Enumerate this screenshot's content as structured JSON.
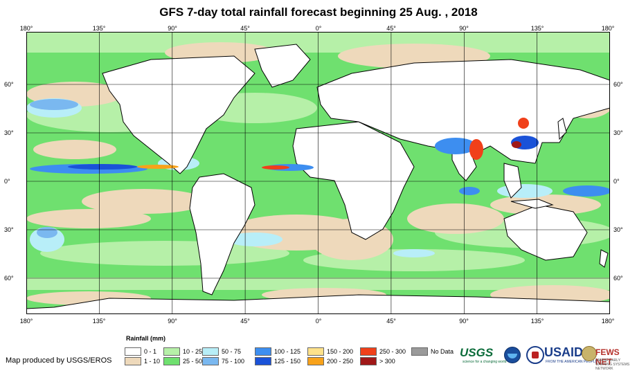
{
  "title": "GFS 7-day total rainfall forecast beginning 25 Aug. , 2018",
  "longitude_labels": [
    "180°",
    "135°",
    "90°",
    "45°",
    "0°",
    "45°",
    "90°",
    "135°",
    "180°"
  ],
  "latitude_labels": [
    "60°",
    "30°",
    "0°",
    "30°",
    "60°"
  ],
  "legend": {
    "title": "Rainfall (mm)",
    "items": [
      {
        "label": "0 - 1",
        "color": "#ffffff"
      },
      {
        "label": "1 - 10",
        "color": "#eed9bb"
      },
      {
        "label": "10 - 25",
        "color": "#b6f0a8"
      },
      {
        "label": "25 - 50",
        "color": "#6fe06f"
      },
      {
        "label": "50 - 75",
        "color": "#b8eef8"
      },
      {
        "label": "75 - 100",
        "color": "#7ab8f0"
      },
      {
        "label": "100 - 125",
        "color": "#3d8ef0"
      },
      {
        "label": "125 - 150",
        "color": "#1a52d8"
      },
      {
        "label": "150 - 200",
        "color": "#fde18a"
      },
      {
        "label": "200 - 250",
        "color": "#f8a21a"
      },
      {
        "label": "250 - 300",
        "color": "#f0401a"
      },
      {
        "label": "> 300",
        "color": "#a01818"
      },
      {
        "label": "No Data",
        "color": "#9a9a9a"
      }
    ]
  },
  "producer_note": "Map produced by USGS/EROS",
  "logos": {
    "usgs": "USGS",
    "usgs_tagline": "science for a changing world",
    "noaa": "noaa-logo",
    "state_dept": "state-department-seal",
    "usaid": "USAID",
    "usaid_tagline": "FROM THE AMERICAN PEOPLE",
    "fews": "FEWS NET",
    "fews_tagline": "FAMINE EARLY WARNING SYSTEMS NETWORK"
  },
  "colors": {
    "ocean_base": "#6fe06f",
    "land": "#ffffff",
    "grid": "#000000",
    "coast": "#000000"
  }
}
